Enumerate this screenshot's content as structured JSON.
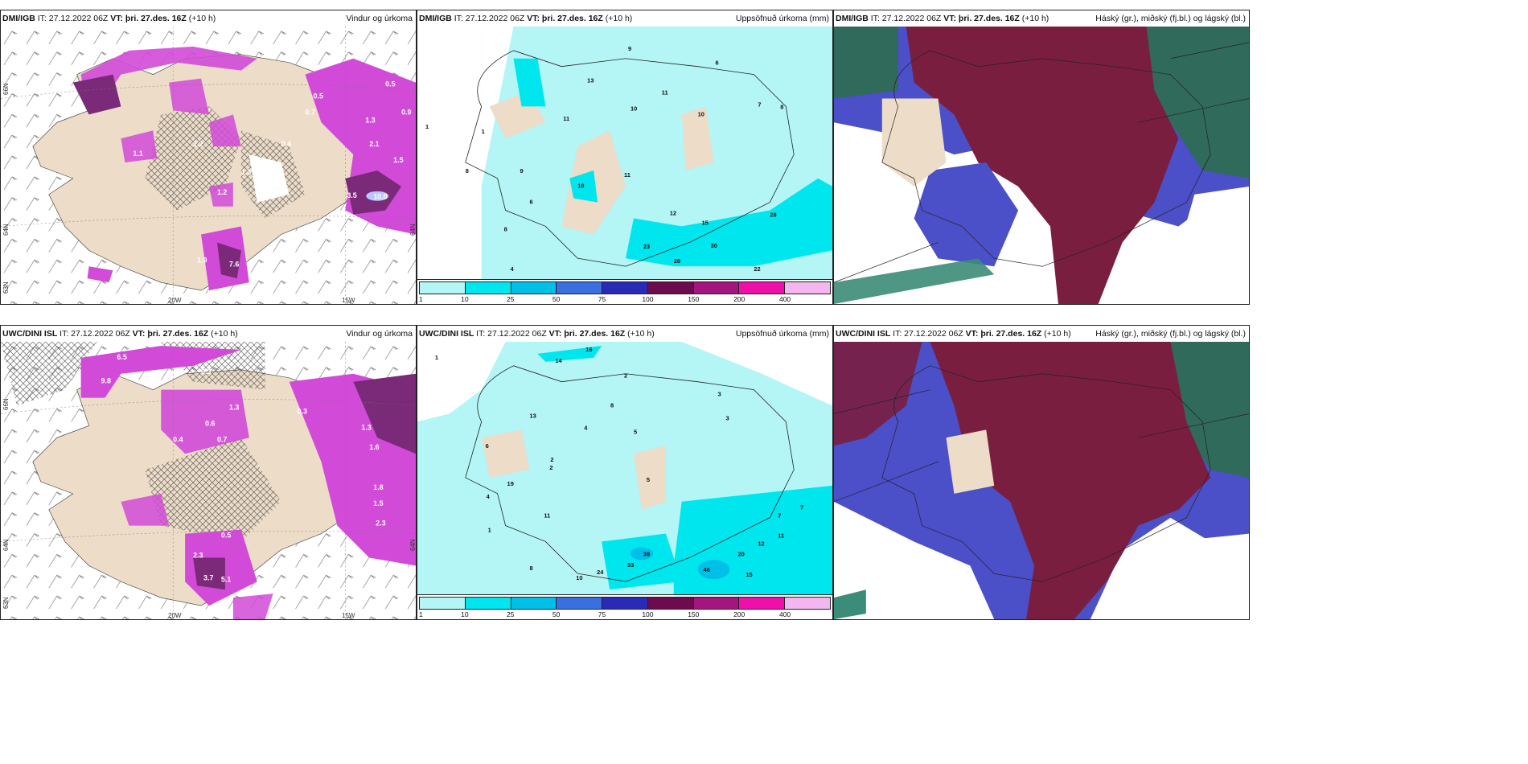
{
  "panels": [
    {
      "id": "dmi-wind",
      "header": {
        "model": "DMI/IGB",
        "it": "IT: 27.12.2022 06Z",
        "vt": "VT: þri. 27.des. 16Z",
        "lead": "(+10 h)",
        "product": "Vindur og úrkoma"
      },
      "axis": {
        "lat1": "66N",
        "lat2": "64N",
        "lat3": "63N",
        "lon1": "20W",
        "lon2": "15W",
        "lat_right": "64N"
      }
    },
    {
      "id": "dmi-precip",
      "header": {
        "model": "DMI/IGB",
        "it": "IT: 27.12.2022 06Z",
        "vt": "VT: þri. 27.des. 16Z",
        "lead": "(+10 h)",
        "product": "Uppsöfnuð úrkoma (mm)"
      },
      "values": [
        "9",
        "6",
        "13",
        "11",
        "10",
        "10",
        "7",
        "8",
        "1",
        "1",
        "11",
        "18",
        "9",
        "8",
        "6",
        "8",
        "12",
        "15",
        "4",
        "23",
        "28",
        "30",
        "22",
        "28",
        "11"
      ]
    },
    {
      "id": "dmi-cloud",
      "header": {
        "model": "DMI/IGB",
        "it": "IT: 27.12.2022 06Z",
        "vt": "VT: þri. 27.des. 16Z",
        "lead": "(+10 h)",
        "product": "Háský (gr.), miðský (fj.bl.) og lágský (bl.)"
      }
    },
    {
      "id": "uwc-wind",
      "header": {
        "model": "UWC/DINI ISL",
        "it": "IT: 27.12.2022 06Z",
        "vt": "VT: þri. 27.des. 16Z",
        "lead": "(+10 h)",
        "product": "Vindur og úrkoma"
      },
      "axis": {
        "lat1": "66N",
        "lat2": "64N",
        "lat3": "63N",
        "lon1": "20W",
        "lon2": "15W",
        "lat_right": "64N"
      }
    },
    {
      "id": "uwc-precip",
      "header": {
        "model": "UWC/DINI ISL",
        "it": "IT: 27.12.2022 06Z",
        "vt": "VT: þri. 27.des. 16Z",
        "lead": "(+10 h)",
        "product": "Uppsöfnuð úrkoma (mm)"
      },
      "values": [
        "16",
        "14",
        "1",
        "2",
        "4",
        "5",
        "8",
        "6",
        "3",
        "3",
        "7",
        "8",
        "10",
        "2",
        "1",
        "11",
        "39",
        "46",
        "20",
        "15",
        "12",
        "11",
        "7",
        "24",
        "33",
        "5",
        "2",
        "4",
        "13",
        "19"
      ]
    },
    {
      "id": "uwc-cloud",
      "header": {
        "model": "UWC/DINI ISL",
        "it": "IT: 27.12.2022 06Z",
        "vt": "VT: þri. 27.des. 16Z",
        "lead": "(+10 h)",
        "product": "Háský (gr.), miðský (fj.bl.) og lágský (bl.)"
      }
    }
  ],
  "colorbar": {
    "ticks": [
      "1",
      "10",
      "25",
      "50",
      "75",
      "100",
      "150",
      "200",
      "400"
    ],
    "colors": [
      "#b4f5f5",
      "#00e6ee",
      "#00c0e8",
      "#3a6fe0",
      "#2a2ab8",
      "#6e0a4e",
      "#a4157e",
      "#ee10a8",
      "#f3b6ee"
    ]
  },
  "wind_labels_dmi": [
    "3.4",
    "0.5",
    "0.9",
    "1.2",
    "1.1",
    "2.1",
    "1.5",
    "3.5",
    "10.0",
    "0.5",
    "0.4",
    "1.3",
    "1.2",
    "0.7",
    "1.3",
    "7.6",
    "1.9"
  ],
  "wind_labels_uwc": [
    "6.5",
    "9.8",
    "0.3",
    "0.6",
    "1.3",
    "0.7",
    "0.4",
    "1.3",
    "1.6",
    "0.3",
    "1.8",
    "1.5",
    "2.3",
    "2.3",
    "3.7",
    "5.1",
    "0.5"
  ],
  "colors": {
    "land": "#ecdcc8",
    "wind_precip": "#d24ad8",
    "wind_precip_dark": "#7a2a78",
    "cyan_light": "#b4f5f5",
    "cyan": "#00e6ee",
    "high_cloud": "#7a1e40",
    "mid_cloud": "#4b4fc8",
    "low_cloud": "#2f6a5a"
  }
}
